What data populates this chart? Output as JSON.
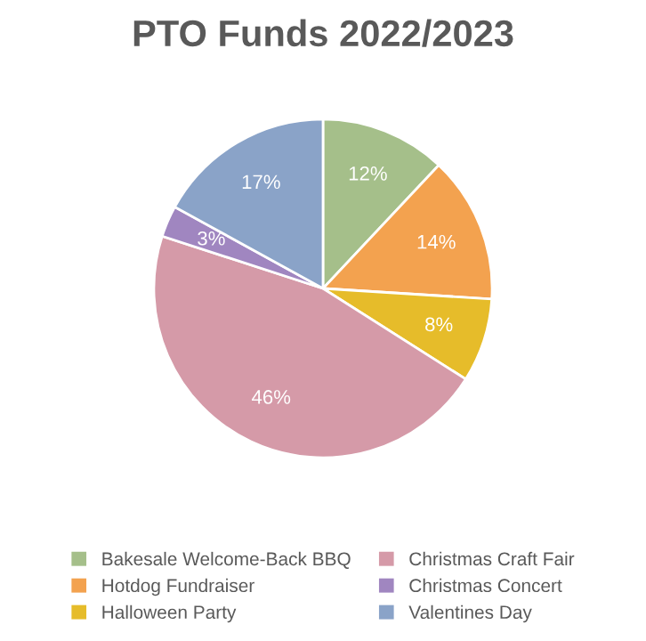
{
  "chart_data": {
    "type": "pie",
    "title": "PTO Funds 2022/2023",
    "categories": [
      "Bakesale Welcome-Back BBQ",
      "Hotdog Fundraiser",
      "Halloween Party",
      "Christmas Craft Fair",
      "Christmas Concert",
      "Valentines Day"
    ],
    "values": [
      12,
      14,
      8,
      46,
      3,
      17
    ],
    "colors": [
      "#a5bf8a",
      "#f3a24f",
      "#e6bc2a",
      "#d59aa8",
      "#a086c0",
      "#8aa3c8"
    ],
    "value_labels": [
      "12%",
      "14%",
      "8%",
      "46%",
      "3%",
      "17%"
    ],
    "legend": "bottom"
  }
}
